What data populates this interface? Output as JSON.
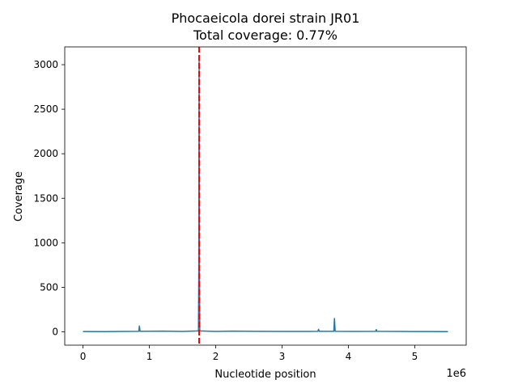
{
  "chart_data": {
    "type": "line",
    "title": "Phocaeicola dorei strain JR01",
    "subtitle": "Total coverage: 0.77%",
    "xlabel": "Nucleotide position",
    "ylabel": "Coverage",
    "x_offset_label": "1e6",
    "xlim": [
      -0.275,
      5.775
    ],
    "ylim": [
      -150,
      3200
    ],
    "x_ticks": [
      0,
      1,
      2,
      3,
      4,
      5
    ],
    "x_tick_labels": [
      "0",
      "1",
      "2",
      "3",
      "4",
      "5"
    ],
    "y_ticks": [
      0,
      500,
      1000,
      1500,
      2000,
      2500,
      3000
    ],
    "y_tick_labels": [
      "0",
      "500",
      "1000",
      "1500",
      "2000",
      "2500",
      "3000"
    ],
    "grid": false,
    "series": [
      {
        "color": "#1f77b4",
        "x": [
          0,
          0.3,
          0.6,
          0.84,
          0.85,
          0.86,
          1.2,
          1.5,
          1.74,
          1.745,
          1.75,
          1.755,
          1.76,
          2.0,
          2.25,
          2.6,
          3.0,
          3.54,
          3.55,
          3.56,
          3.78,
          3.79,
          3.8,
          4.1,
          4.41,
          4.42,
          4.43,
          4.8,
          5.2,
          5.5
        ],
        "y": [
          3,
          2,
          4,
          5,
          65,
          5,
          8,
          4,
          10,
          650,
          3070,
          650,
          10,
          4,
          8,
          5,
          4,
          5,
          28,
          5,
          5,
          150,
          5,
          4,
          5,
          25,
          5,
          4,
          3,
          2
        ]
      }
    ],
    "reference_line": {
      "orientation": "vertical",
      "x": 1.75,
      "color": "#ff0000",
      "style": "dashed"
    }
  }
}
